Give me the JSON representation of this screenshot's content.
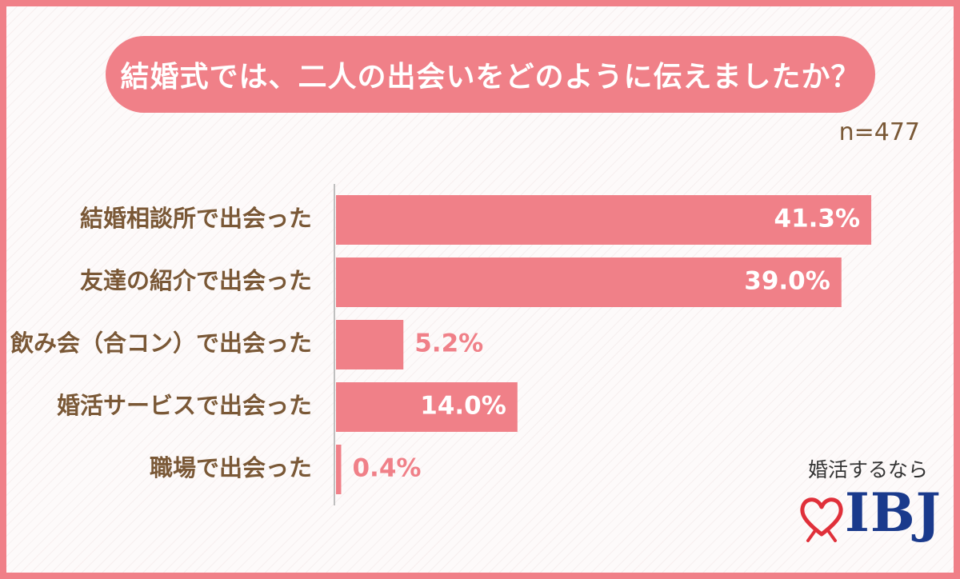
{
  "title": "結婚式では、二人の出会いをどのように伝えましたか？",
  "sample_size": "n=477",
  "logo": {
    "tagline": "婚活するなら",
    "wordmark": "IBJ",
    "icon": "heart-icon"
  },
  "colors": {
    "bar": "#f08088",
    "frame": "#f08088",
    "label": "#7a5836",
    "logo_blue": "#1a3a8c"
  },
  "chart_data": {
    "type": "bar",
    "orientation": "horizontal",
    "title": "結婚式では、二人の出会いをどのように伝えましたか？",
    "categories": [
      "結婚相談所で出会った",
      "友達の紹介で出会った",
      "飲み会（合コン）で出会った",
      "婚活サービスで出会った",
      "職場で出会った"
    ],
    "values": [
      41.3,
      39.0,
      5.2,
      14.0,
      0.4
    ],
    "value_labels": [
      "41.3%",
      "39.0%",
      "5.2%",
      "14.0%",
      "0.4%"
    ],
    "unit": "%",
    "xlim": [
      0,
      45
    ],
    "grid": false,
    "legend": "none"
  }
}
